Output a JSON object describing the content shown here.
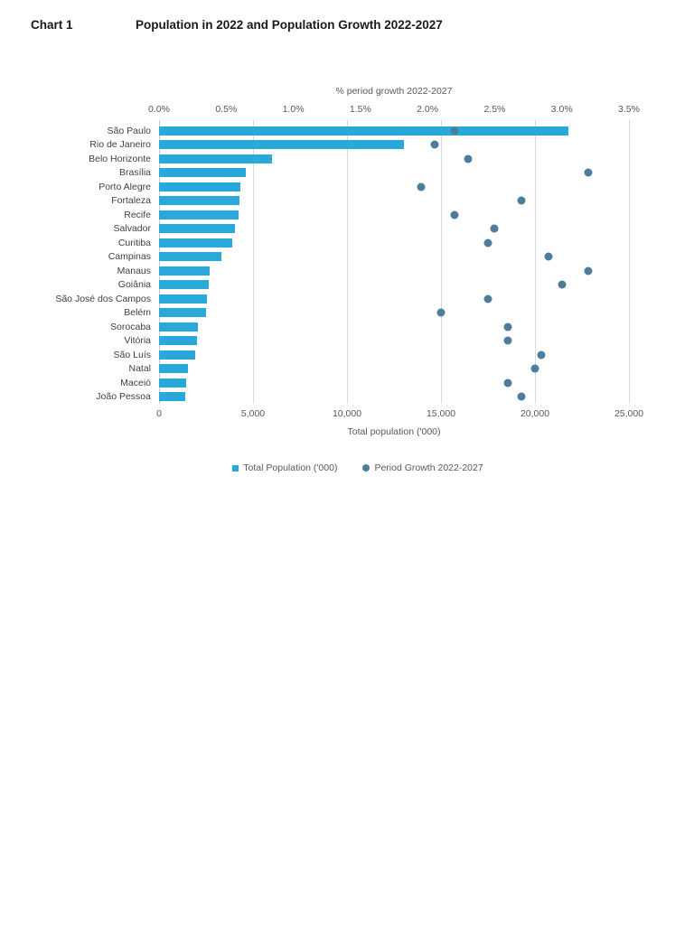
{
  "page": {
    "chart_label": "Chart 1",
    "title": "Population in 2022 and Population Growth 2022-2027"
  },
  "chart_data": {
    "type": "bar",
    "subtype": "horizontal-bar-with-scatter",
    "title": "Population in 2022 and Population Growth 2022-2027",
    "categories": [
      "São Paulo",
      "Rio de Janeiro",
      "Belo Horizonte",
      "Brasília",
      "Porto Alegre",
      "Fortaleza",
      "Recife",
      "Salvador",
      "Curitiba",
      "Campinas",
      "Manaus",
      "Goiânia",
      "São José dos Campos",
      "Belém",
      "Sorocaba",
      "Vitória",
      "São Luís",
      "Natal",
      "Maceió",
      "João Pessoa"
    ],
    "series": [
      {
        "name": "Total Population ('000)",
        "type": "bar",
        "axis": "bottom",
        "values": [
          21800,
          13050,
          6000,
          4600,
          4350,
          4300,
          4250,
          4050,
          3900,
          3300,
          2700,
          2650,
          2550,
          2500,
          2050,
          2000,
          1900,
          1550,
          1450,
          1400
        ]
      },
      {
        "name": "Period Growth 2022-2027",
        "type": "scatter",
        "axis": "top",
        "values": [
          2.2,
          2.05,
          2.3,
          3.2,
          1.95,
          2.7,
          2.2,
          2.5,
          2.45,
          2.9,
          3.2,
          3.0,
          2.45,
          2.1,
          2.6,
          2.6,
          2.85,
          2.8,
          2.6,
          2.7
        ]
      }
    ],
    "top_axis": {
      "title": "% period growth 2022-2027",
      "ticks": [
        "0.0%",
        "0.5%",
        "1.0%",
        "1.5%",
        "2.0%",
        "2.5%",
        "3.0%",
        "3.5%"
      ],
      "min": 0,
      "max": 3.5
    },
    "bottom_axis": {
      "title": "Total population ('000)",
      "ticks": [
        "0",
        "5,000",
        "10,000",
        "15,000",
        "20,000",
        "25,000"
      ],
      "min": 0,
      "max": 25000
    },
    "grid": "vertical",
    "legend_position": "bottom",
    "colors": {
      "bar": "#29a9da",
      "dot": "#4d7d9c"
    },
    "legend": [
      {
        "label": "Total Population ('000)",
        "marker": "square"
      },
      {
        "label": "Period Growth 2022-2027",
        "marker": "circle"
      }
    ]
  }
}
